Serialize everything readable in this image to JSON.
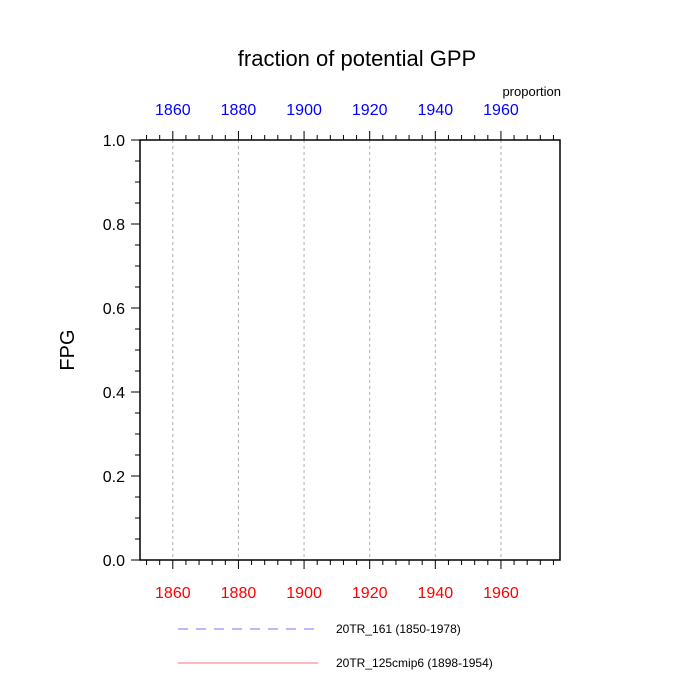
{
  "chart_data": {
    "type": "line",
    "title": "fraction of potential GPP",
    "ylabel": "FPG",
    "units_label": "proportion",
    "xlim": [
      1850,
      1978
    ],
    "ylim": [
      0,
      1
    ],
    "grid": "vertical dotted at major x ticks",
    "x_ticks": [
      1860,
      1880,
      1900,
      1920,
      1940,
      1960
    ],
    "x_tick_labels": [
      "1860",
      "1880",
      "1900",
      "1920",
      "1940",
      "1960"
    ],
    "y_ticks": [
      0,
      0.2,
      0.4,
      0.6,
      0.8,
      1.0
    ],
    "y_tick_labels": [
      "0.0",
      "0.2",
      "0.4",
      "0.6",
      "0.8",
      "1.0"
    ],
    "bottom_axis_color": "#ff0000",
    "top_axis_color": "#0000ff",
    "legend_placement": "bottom",
    "series": [
      {
        "name": "20TR_161 (1850-1978)",
        "color": "#0000ff",
        "dash": "dashed",
        "x": [],
        "y": []
      },
      {
        "name": "20TR_125cmip6 (1898-1954)",
        "color": "#ff0000",
        "dash": "solid",
        "x": [],
        "y": []
      }
    ]
  }
}
